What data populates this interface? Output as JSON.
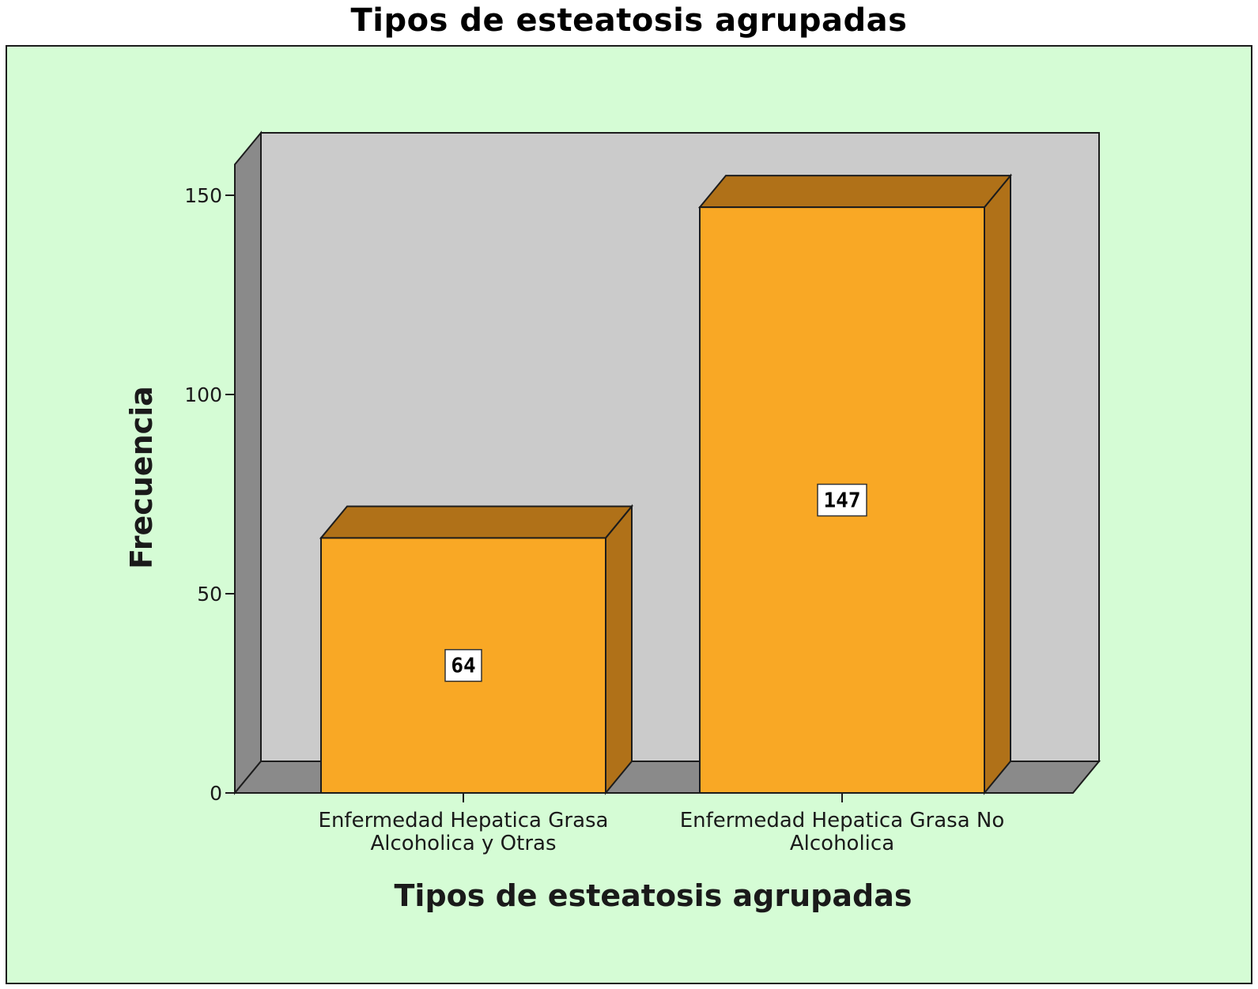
{
  "colors": {
    "outer_background": "#d5fcd5",
    "plot_back_wall": "#cbcbcb",
    "plot_side_wall": "#8a8a8a",
    "bar_front": "#f9a825",
    "bar_top": "#b07118",
    "bar_side": "#b07118",
    "outline": "#1c1c1c"
  },
  "chart_data": {
    "type": "bar",
    "style": "3d",
    "title": "Tipos de esteatosis agrupadas",
    "xlabel": "Tipos de esteatosis agrupadas",
    "ylabel": "Frecuencia",
    "categories": [
      [
        "Enfermedad Hepatica Grasa",
        "Alcoholica y Otras"
      ],
      [
        "Enfermedad Hepatica Grasa No",
        "Alcoholica"
      ]
    ],
    "values": [
      64,
      147
    ],
    "data_labels": [
      "64",
      "147"
    ],
    "yticks": [
      "0",
      "50",
      "100",
      "150"
    ],
    "ylim": [
      0,
      150
    ],
    "grid": false,
    "legend": "none"
  }
}
